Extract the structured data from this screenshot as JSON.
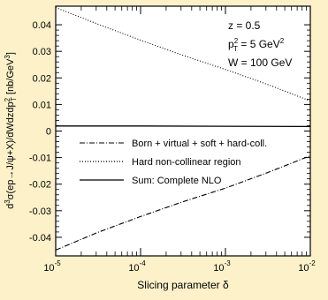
{
  "chart_data": {
    "type": "line",
    "xscale": "log",
    "xlim": [
      1e-05,
      0.01
    ],
    "ylim": [
      -0.047,
      0.047
    ],
    "xlabel": "Slicing parameter δ",
    "ylabel": "d³σ(ep→J/ψ+X)/dWdzdp²T [nb/GeV³]",
    "xticks": [
      "10-5",
      "10-4",
      "10-3",
      "10-2"
    ],
    "yticks": [
      -0.04,
      -0.03,
      -0.02,
      -0.01,
      0,
      0.01,
      0.02,
      0.03,
      0.04
    ],
    "ytick_labels": [
      "-0.04",
      "-0.03",
      "-0.02",
      "-0.01",
      "0",
      "0.01",
      "0.02",
      "0.03",
      "0.04"
    ],
    "annotations": [
      "z = 0.5",
      "p²T = 5 GeV²",
      "W = 100 GeV"
    ],
    "legend_position": "center",
    "grid": false,
    "series": [
      {
        "name": "Born + virtual + soft + hard-coll.",
        "style": "dashdot",
        "x": [
          1e-05,
          3.16e-05,
          0.0001,
          0.000316,
          0.001,
          0.00316,
          0.01
        ],
        "y": [
          -0.0448,
          -0.0381,
          -0.0322,
          -0.0266,
          -0.0215,
          -0.0156,
          -0.0093
        ]
      },
      {
        "name": "Hard non-collinear region",
        "style": "dotted",
        "x": [
          1e-05,
          3.16e-05,
          0.0001,
          0.000316,
          0.001,
          0.00316,
          0.01
        ],
        "y": [
          0.0465,
          0.0402,
          0.0342,
          0.0285,
          0.0232,
          0.0175,
          0.0113
        ]
      },
      {
        "name": "Sum: Complete NLO",
        "style": "solid",
        "x": [
          1e-05,
          0.0001,
          0.001,
          0.01
        ],
        "y": [
          0.0019,
          0.0019,
          0.0018,
          0.0017
        ]
      }
    ]
  }
}
